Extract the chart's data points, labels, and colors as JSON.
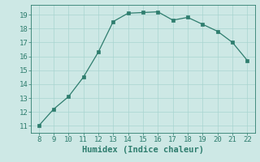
{
  "x": [
    8,
    9,
    10,
    11,
    12,
    13,
    14,
    15,
    16,
    17,
    18,
    19,
    20,
    21,
    22
  ],
  "y": [
    11.0,
    12.2,
    13.1,
    14.5,
    16.3,
    18.5,
    19.1,
    19.15,
    19.2,
    18.6,
    18.8,
    18.3,
    17.8,
    17.0,
    15.7
  ],
  "line_color": "#2e7d6e",
  "marker_color": "#2e7d6e",
  "bg_color": "#cde8e5",
  "grid_color": "#a8d4d0",
  "xlabel": "Humidex (Indice chaleur)",
  "xlim": [
    7.5,
    22.5
  ],
  "ylim": [
    10.5,
    19.7
  ],
  "xticks": [
    8,
    9,
    10,
    11,
    12,
    13,
    14,
    15,
    16,
    17,
    18,
    19,
    20,
    21,
    22
  ],
  "yticks": [
    11,
    12,
    13,
    14,
    15,
    16,
    17,
    18,
    19
  ],
  "tick_color": "#2e7d6e",
  "label_color": "#2e7d6e",
  "xlabel_fontsize": 7.5,
  "tick_fontsize": 6.5
}
